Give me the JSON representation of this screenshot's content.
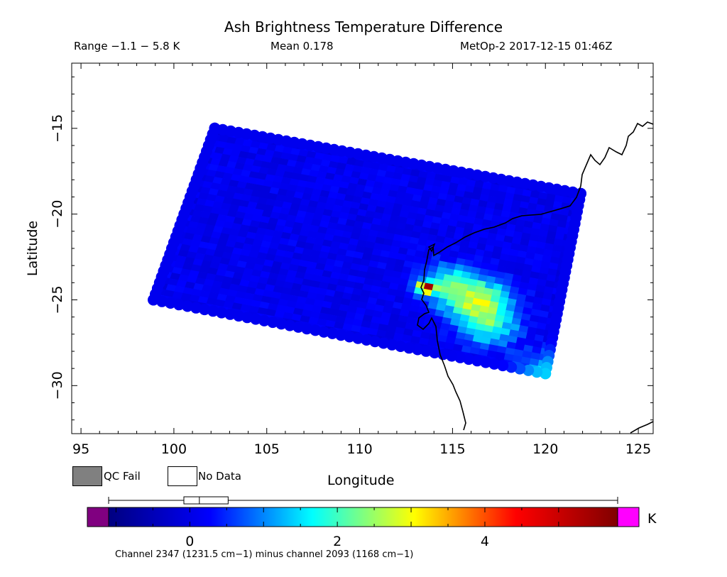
{
  "header": {
    "title": "Ash Brightness Temperature Difference",
    "range": "Range −1.1 − 5.8 K",
    "mean": "Mean 0.178",
    "satellite_time": "MetOp-2 2017-12-15 01:46Z"
  },
  "legend": {
    "qc_fail": "QC Fail",
    "no_data": "No Data",
    "qc_fail_color": "#808080",
    "no_data_color": "#ffffff"
  },
  "colorbar": {
    "unit": "K",
    "ticks": [
      "0",
      "2",
      "4"
    ],
    "colors": [
      "#000080",
      "#0000ff",
      "#00ffff",
      "#ffff00",
      "#ff0000",
      "#800000"
    ],
    "under_color": "#800080",
    "over_color": "#ff00ff",
    "whisker": {
      "min": -1.1,
      "q1": -0.08,
      "median": 0.13,
      "q3": 0.52,
      "max": 5.8
    }
  },
  "footnote": "Channel 2347 (1231.5 cm−1) minus channel 2093 (1168 cm−1)",
  "chart_data": {
    "type": "heatmap",
    "title": "Ash Brightness Temperature Difference",
    "xlabel": "Longitude",
    "ylabel": "Latitude",
    "xlim": [
      94.5,
      125.8
    ],
    "ylim": [
      -32.8,
      -11.2
    ],
    "xticks": [
      95,
      100,
      105,
      110,
      115,
      120,
      125
    ],
    "yticks": [
      -15,
      -20,
      -25,
      -30
    ],
    "xtick_labels": [
      "95",
      "100",
      "105",
      "110",
      "115",
      "120",
      "125"
    ],
    "ytick_labels": [
      "−15",
      "−20",
      "−25",
      "−30"
    ],
    "value_range_K": [
      -1.1,
      5.8
    ],
    "mean_K": 0.178,
    "swath_corners": [
      [
        102.2,
        -15.0
      ],
      [
        121.9,
        -18.8
      ],
      [
        120.0,
        -29.3
      ],
      [
        98.9,
        -25.0
      ]
    ],
    "background_value_K": 0.1,
    "features": [
      {
        "lon": 116.5,
        "lat": -25.1,
        "value_K": 2.3
      },
      {
        "lon": 114.8,
        "lat": -24.2,
        "value_K": 1.8
      },
      {
        "lon": 117.0,
        "lat": -26.6,
        "value_K": 1.6
      },
      {
        "lon": 113.6,
        "lat": -24.3,
        "value_K": 5.2
      },
      {
        "lon": 120.0,
        "lat": -29.3,
        "value_K": 1.4
      }
    ],
    "grid": false
  }
}
